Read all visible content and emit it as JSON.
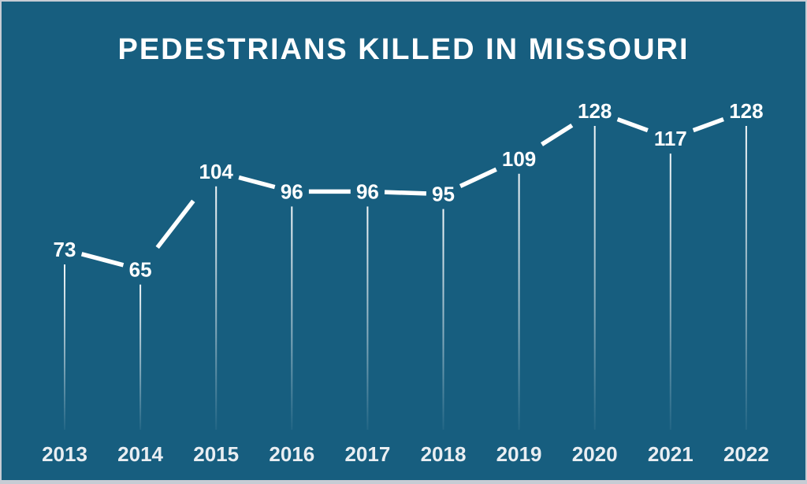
{
  "frame": {
    "background": "#175e7f",
    "border_color": "#c7ccd4"
  },
  "chart_data": {
    "type": "line",
    "title": "PEDESTRIANS KILLED IN MISSOURI",
    "categories": [
      "2013",
      "2014",
      "2015",
      "2016",
      "2017",
      "2018",
      "2019",
      "2020",
      "2021",
      "2022"
    ],
    "values": [
      73,
      65,
      104,
      96,
      96,
      95,
      109,
      128,
      117,
      128
    ],
    "xlabel": "",
    "ylabel": "",
    "ylim": [
      0,
      140
    ],
    "grid": false,
    "legend": false,
    "annotations": "value label centered at each data point; line segments trimmed around labels",
    "marker_style": "thin vertical stem below each point fading toward baseline",
    "line_color": "#ffffff",
    "value_label_color": "#ffffff",
    "axis_label_color": "#e9eef2"
  }
}
